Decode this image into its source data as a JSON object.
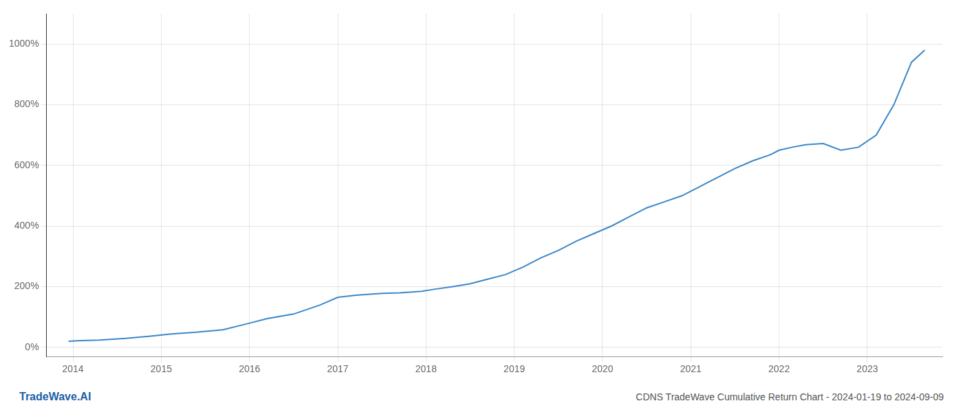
{
  "chart_data": {
    "type": "line",
    "title": "CDNS TradeWave Cumulative Return Chart - 2024-01-19 to 2024-09-09",
    "annotations": [
      "TradeWave.AI"
    ],
    "x": [
      2013.95,
      2014.05,
      2014.3,
      2014.6,
      2014.9,
      2015.1,
      2015.4,
      2015.7,
      2016.0,
      2016.2,
      2016.5,
      2016.8,
      2017.0,
      2017.2,
      2017.5,
      2017.7,
      2017.95,
      2018.1,
      2018.3,
      2018.5,
      2018.7,
      2018.9,
      2019.1,
      2019.3,
      2019.5,
      2019.7,
      2019.9,
      2020.1,
      2020.3,
      2020.5,
      2020.7,
      2020.9,
      2021.1,
      2021.3,
      2021.5,
      2021.7,
      2021.9,
      2022.0,
      2022.15,
      2022.3,
      2022.5,
      2022.7,
      2022.9,
      2023.1,
      2023.3,
      2023.5,
      2023.65
    ],
    "values": [
      20,
      22,
      24,
      30,
      38,
      44,
      50,
      58,
      80,
      95,
      110,
      140,
      165,
      172,
      178,
      180,
      185,
      192,
      200,
      210,
      225,
      240,
      265,
      295,
      320,
      350,
      375,
      400,
      430,
      460,
      480,
      500,
      530,
      560,
      590,
      615,
      635,
      650,
      660,
      668,
      672,
      650,
      660,
      700,
      800,
      940,
      980
    ],
    "color": "#3a87c8",
    "xlim": [
      2013.7,
      2023.85
    ],
    "xticks": [
      2014,
      2015,
      2016,
      2017,
      2018,
      2019,
      2020,
      2021,
      2022,
      2023
    ],
    "ylim": [
      -30,
      1100
    ],
    "yticks": [
      {
        "value": 0,
        "label": "0%"
      },
      {
        "value": 200,
        "label": "200%"
      },
      {
        "value": 400,
        "label": "400%"
      },
      {
        "value": 600,
        "label": "600%"
      },
      {
        "value": 800,
        "label": "800%"
      },
      {
        "value": 1000,
        "label": "1000%"
      }
    ],
    "grid": true
  }
}
